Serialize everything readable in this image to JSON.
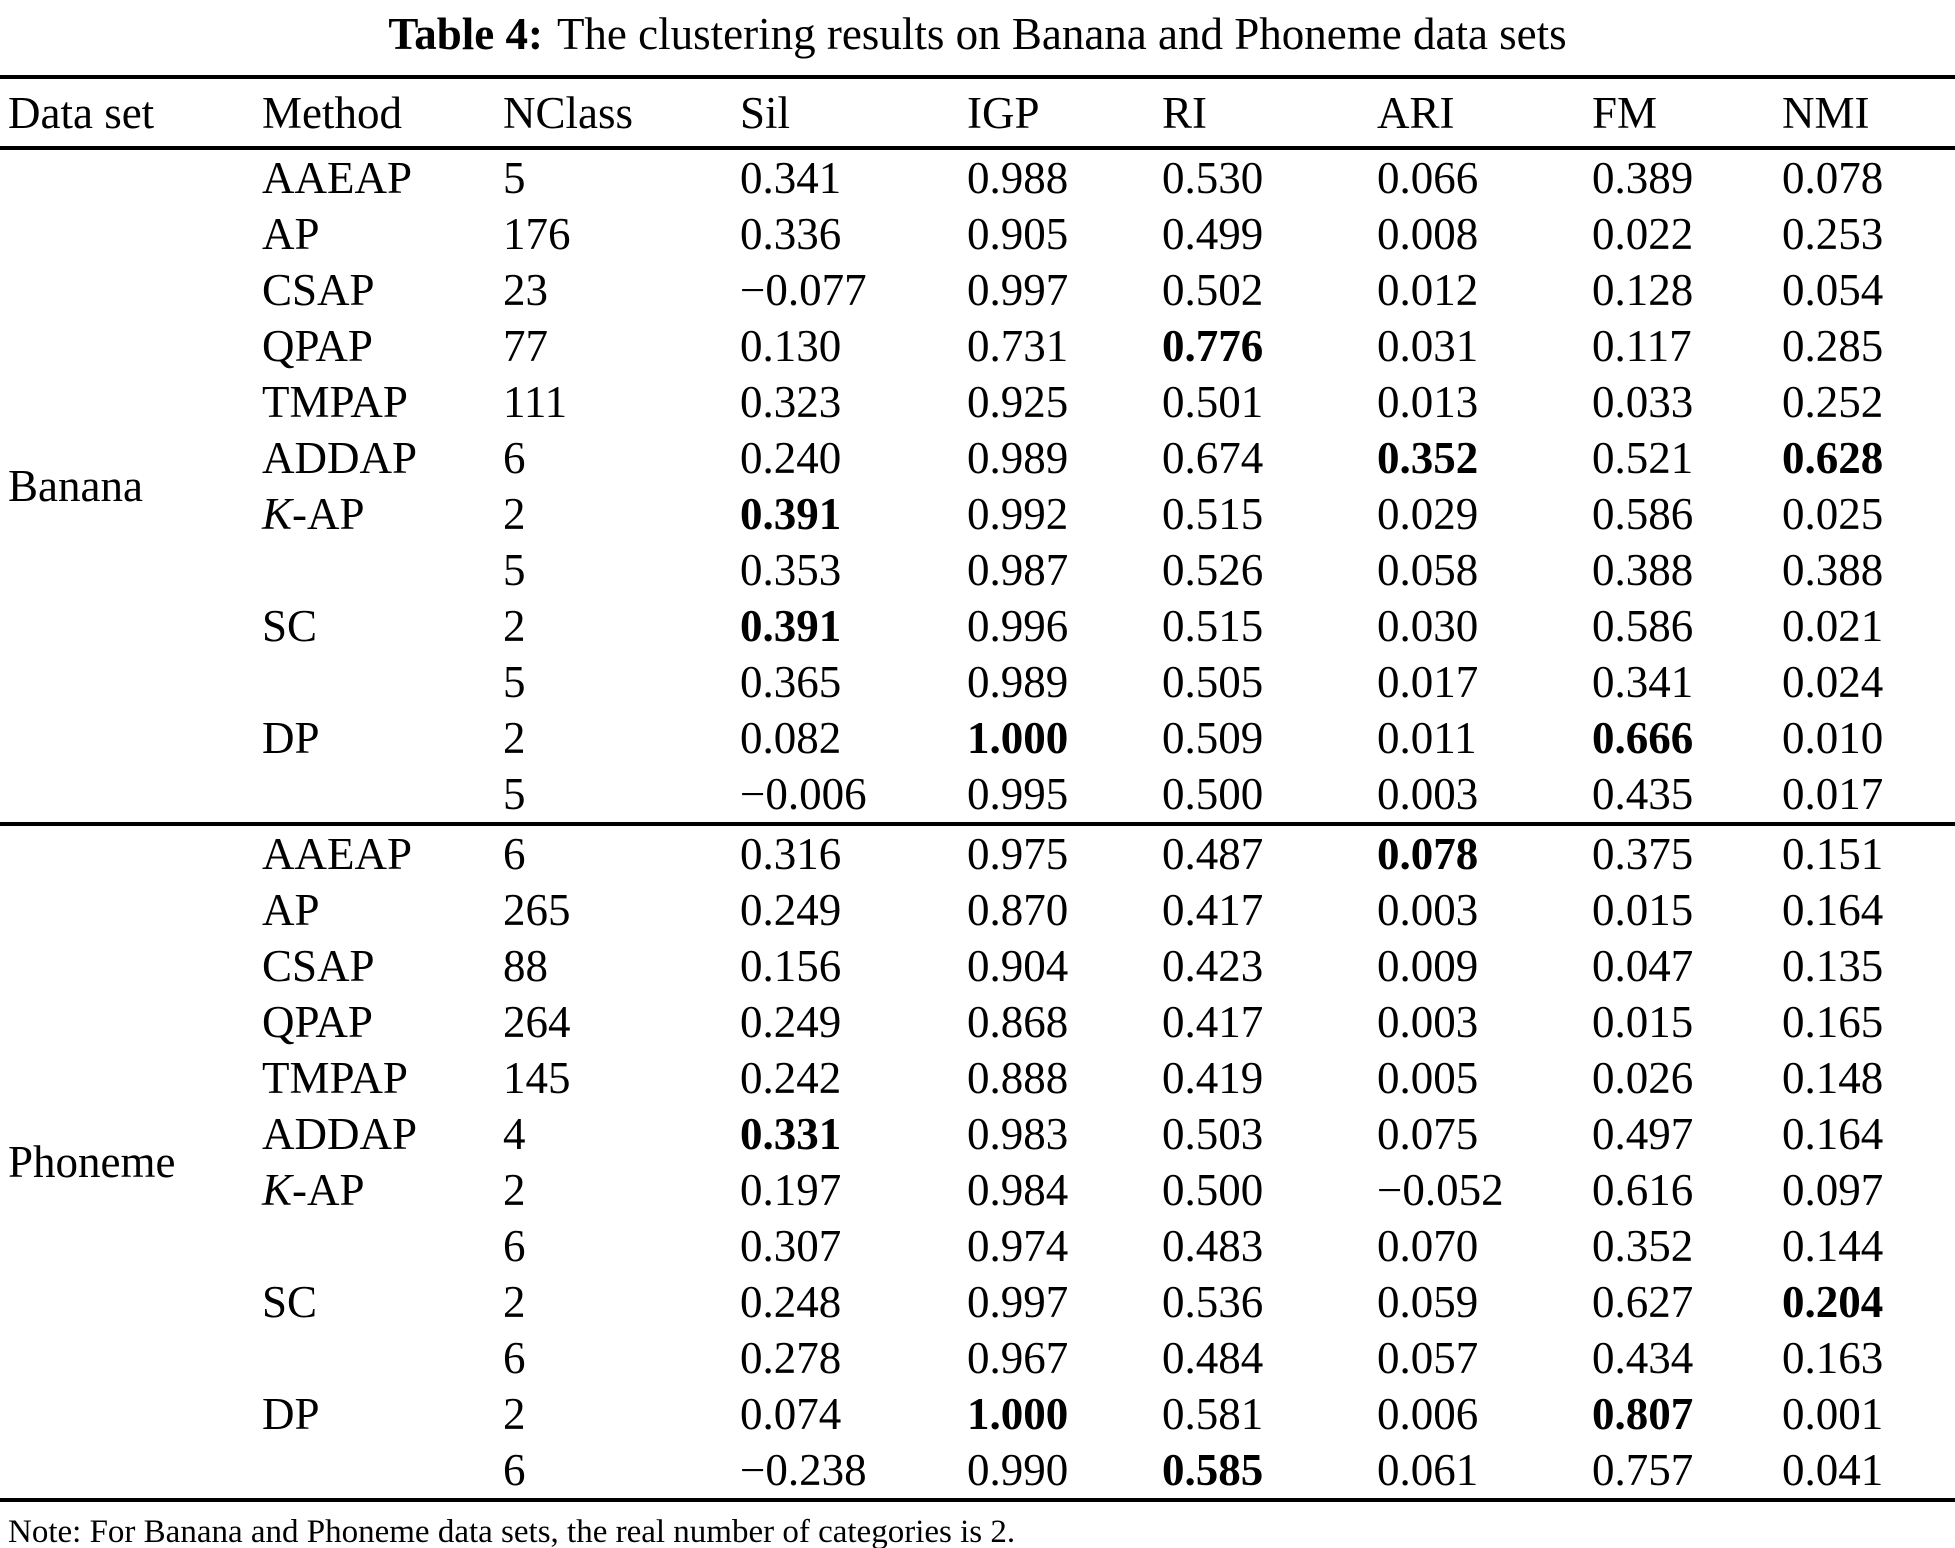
{
  "title": {
    "prefix": "Table 4:",
    "text": "The clustering results on Banana and Phoneme data sets"
  },
  "columns": [
    "Data set",
    "Method",
    "NClass",
    "Sil",
    "IGP",
    "RI",
    "ARI",
    "FM",
    "NMI"
  ],
  "sections": [
    {
      "dataset": "Banana",
      "rows": [
        {
          "method": "AAEAP",
          "italic_first": false,
          "nclass": "5",
          "vals": [
            "0.341",
            "0.988",
            "0.530",
            "0.066",
            "0.389",
            "0.078"
          ],
          "bold": []
        },
        {
          "method": "AP",
          "italic_first": false,
          "nclass": "176",
          "vals": [
            "0.336",
            "0.905",
            "0.499",
            "0.008",
            "0.022",
            "0.253"
          ],
          "bold": []
        },
        {
          "method": "CSAP",
          "italic_first": false,
          "nclass": "23",
          "vals": [
            "−0.077",
            "0.997",
            "0.502",
            "0.012",
            "0.128",
            "0.054"
          ],
          "bold": []
        },
        {
          "method": "QPAP",
          "italic_first": false,
          "nclass": "77",
          "vals": [
            "0.130",
            "0.731",
            "0.776",
            "0.031",
            "0.117",
            "0.285"
          ],
          "bold": [
            2
          ]
        },
        {
          "method": "TMPAP",
          "italic_first": false,
          "nclass": "111",
          "vals": [
            "0.323",
            "0.925",
            "0.501",
            "0.013",
            "0.033",
            "0.252"
          ],
          "bold": []
        },
        {
          "method": "ADDAP",
          "italic_first": false,
          "nclass": "6",
          "vals": [
            "0.240",
            "0.989",
            "0.674",
            "0.352",
            "0.521",
            "0.628"
          ],
          "bold": [
            3,
            5
          ]
        },
        {
          "method": "K-AP",
          "italic_first": true,
          "nclass": "2",
          "vals": [
            "0.391",
            "0.992",
            "0.515",
            "0.029",
            "0.586",
            "0.025"
          ],
          "bold": [
            0
          ]
        },
        {
          "method": "",
          "italic_first": false,
          "nclass": "5",
          "vals": [
            "0.353",
            "0.987",
            "0.526",
            "0.058",
            "0.388",
            "0.388"
          ],
          "bold": []
        },
        {
          "method": "SC",
          "italic_first": false,
          "nclass": "2",
          "vals": [
            "0.391",
            "0.996",
            "0.515",
            "0.030",
            "0.586",
            "0.021"
          ],
          "bold": [
            0
          ]
        },
        {
          "method": "",
          "italic_first": false,
          "nclass": "5",
          "vals": [
            "0.365",
            "0.989",
            "0.505",
            "0.017",
            "0.341",
            "0.024"
          ],
          "bold": []
        },
        {
          "method": "DP",
          "italic_first": false,
          "nclass": "2",
          "vals": [
            "0.082",
            "1.000",
            "0.509",
            "0.011",
            "0.666",
            "0.010"
          ],
          "bold": [
            1,
            4
          ]
        },
        {
          "method": "",
          "italic_first": false,
          "nclass": "5",
          "vals": [
            "−0.006",
            "0.995",
            "0.500",
            "0.003",
            "0.435",
            "0.017"
          ],
          "bold": []
        }
      ]
    },
    {
      "dataset": "Phoneme",
      "rows": [
        {
          "method": "AAEAP",
          "italic_first": false,
          "nclass": "6",
          "vals": [
            "0.316",
            "0.975",
            "0.487",
            "0.078",
            "0.375",
            "0.151"
          ],
          "bold": [
            3
          ]
        },
        {
          "method": "AP",
          "italic_first": false,
          "nclass": "265",
          "vals": [
            "0.249",
            "0.870",
            "0.417",
            "0.003",
            "0.015",
            "0.164"
          ],
          "bold": []
        },
        {
          "method": "CSAP",
          "italic_first": false,
          "nclass": "88",
          "vals": [
            "0.156",
            "0.904",
            "0.423",
            "0.009",
            "0.047",
            "0.135"
          ],
          "bold": []
        },
        {
          "method": "QPAP",
          "italic_first": false,
          "nclass": "264",
          "vals": [
            "0.249",
            "0.868",
            "0.417",
            "0.003",
            "0.015",
            "0.165"
          ],
          "bold": []
        },
        {
          "method": "TMPAP",
          "italic_first": false,
          "nclass": "145",
          "vals": [
            "0.242",
            "0.888",
            "0.419",
            "0.005",
            "0.026",
            "0.148"
          ],
          "bold": []
        },
        {
          "method": "ADDAP",
          "italic_first": false,
          "nclass": "4",
          "vals": [
            "0.331",
            "0.983",
            "0.503",
            "0.075",
            "0.497",
            "0.164"
          ],
          "bold": [
            0
          ]
        },
        {
          "method": "K-AP",
          "italic_first": true,
          "nclass": "2",
          "vals": [
            "0.197",
            "0.984",
            "0.500",
            "−0.052",
            "0.616",
            "0.097"
          ],
          "bold": []
        },
        {
          "method": "",
          "italic_first": false,
          "nclass": "6",
          "vals": [
            "0.307",
            "0.974",
            "0.483",
            "0.070",
            "0.352",
            "0.144"
          ],
          "bold": []
        },
        {
          "method": "SC",
          "italic_first": false,
          "nclass": "2",
          "vals": [
            "0.248",
            "0.997",
            "0.536",
            "0.059",
            "0.627",
            "0.204"
          ],
          "bold": [
            5
          ]
        },
        {
          "method": "",
          "italic_first": false,
          "nclass": "6",
          "vals": [
            "0.278",
            "0.967",
            "0.484",
            "0.057",
            "0.434",
            "0.163"
          ],
          "bold": []
        },
        {
          "method": "DP",
          "italic_first": false,
          "nclass": "2",
          "vals": [
            "0.074",
            "1.000",
            "0.581",
            "0.006",
            "0.807",
            "0.001"
          ],
          "bold": [
            1,
            4
          ]
        },
        {
          "method": "",
          "italic_first": false,
          "nclass": "6",
          "vals": [
            "−0.238",
            "0.990",
            "0.585",
            "0.061",
            "0.757",
            "0.041"
          ],
          "bold": [
            2
          ]
        }
      ]
    }
  ],
  "note": "Note: For Banana and Phoneme data sets, the real number of categories is 2.",
  "colors": {
    "text": "#000000",
    "background": "#ffffff",
    "rule": "#000000"
  }
}
